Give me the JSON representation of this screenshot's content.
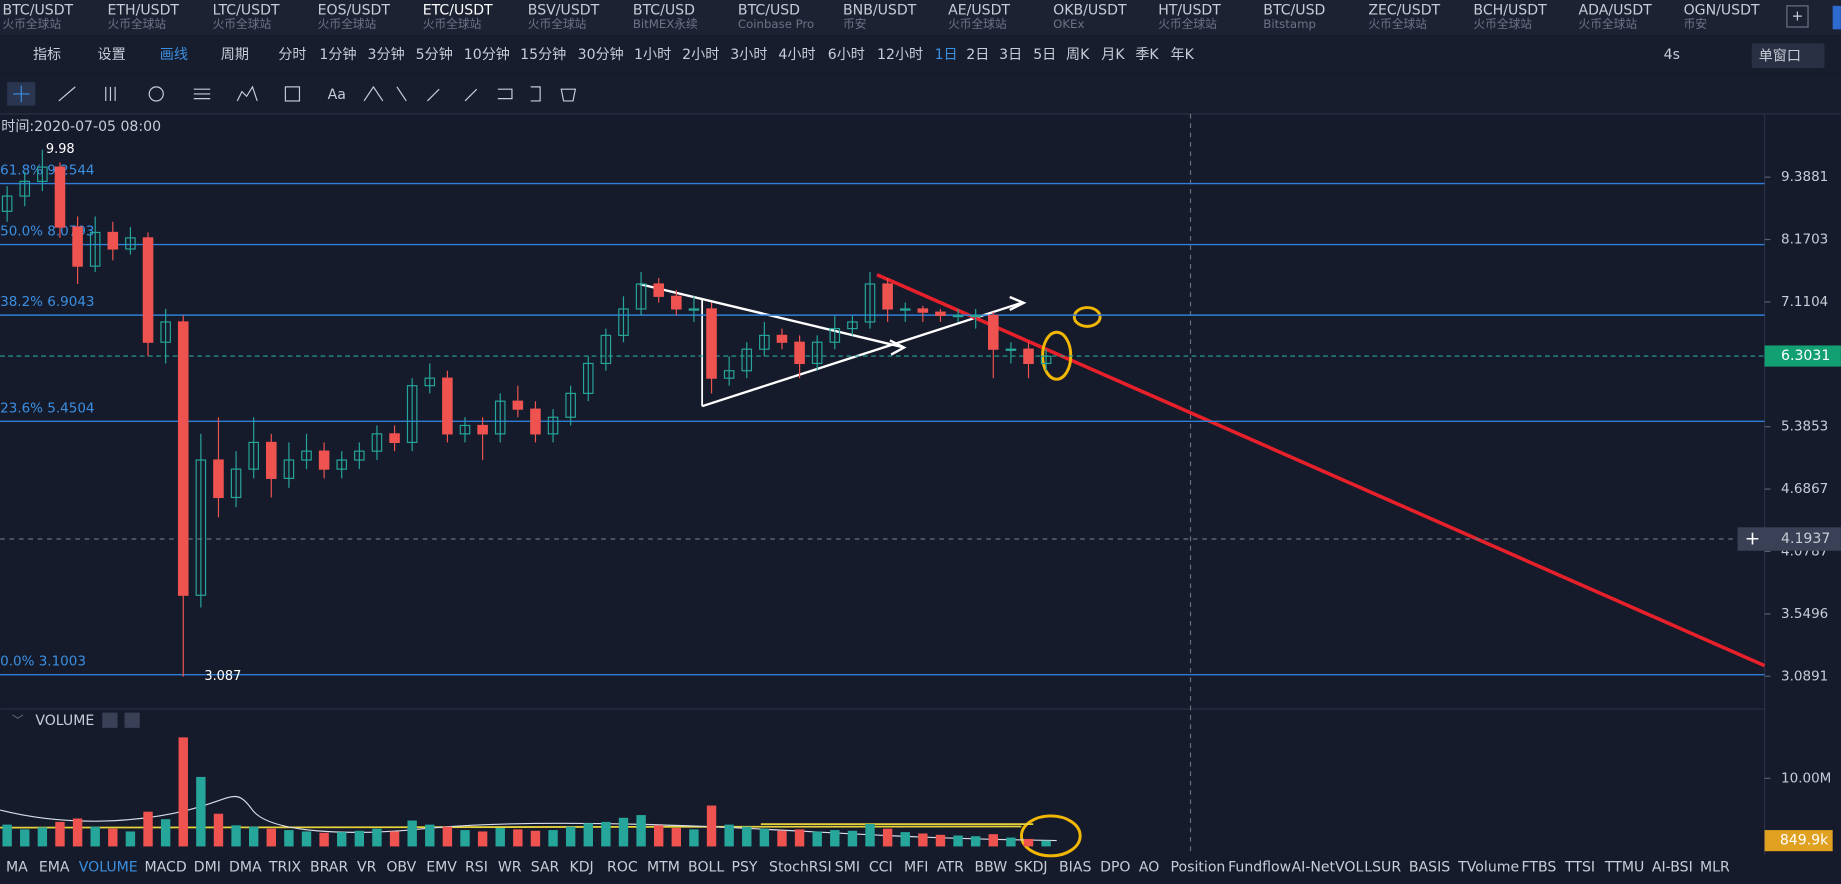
{
  "tabs": [
    {
      "symbol": "BTC/USDT",
      "exchange": "火币全球站"
    },
    {
      "symbol": "ETH/USDT",
      "exchange": "火币全球站"
    },
    {
      "symbol": "LTC/USDT",
      "exchange": "火币全球站"
    },
    {
      "symbol": "EOS/USDT",
      "exchange": "火币全球站"
    },
    {
      "symbol": "ETC/USDT",
      "exchange": "火币全球站"
    },
    {
      "symbol": "BSV/USDT",
      "exchange": "火币全球站"
    },
    {
      "symbol": "BTC/USD",
      "exchange": "BitMEX永续"
    },
    {
      "symbol": "BTC/USD",
      "exchange": "Coinbase Pro"
    },
    {
      "symbol": "BNB/USDT",
      "exchange": "币安"
    },
    {
      "symbol": "AE/USDT",
      "exchange": "火币全球站"
    },
    {
      "symbol": "OKB/USDT",
      "exchange": "OKEx"
    },
    {
      "symbol": "HT/USDT",
      "exchange": "火币全球站"
    },
    {
      "symbol": "BTC/USD",
      "exchange": "Bitstamp"
    },
    {
      "symbol": "ZEC/USDT",
      "exchange": "火币全球站"
    },
    {
      "symbol": "BCH/USDT",
      "exchange": "火币全球站"
    },
    {
      "symbol": "ADA/USDT",
      "exchange": "火币全球站"
    },
    {
      "symbol": "OGN/USDT",
      "exchange": "币安"
    }
  ],
  "toolbar": {
    "indicators": "指标",
    "settings": "设置",
    "draw": "画线",
    "period": "周期",
    "periods": [
      "分时",
      "1分钟",
      "3分钟",
      "5分钟",
      "10分钟",
      "15分钟",
      "30分钟",
      "1小时",
      "2小时",
      "3小时",
      "4小时",
      "6小时",
      "12小时",
      "1日",
      "2日",
      "3日",
      "5日",
      "周K",
      "月K",
      "季K",
      "年K"
    ],
    "refresh": "4s",
    "window": "单窗口"
  },
  "chart_data": {
    "type": "candlestick",
    "time_label": "时间:2020-07-05 08:00",
    "log_scale": true,
    "ylim": [
      2.879,
      10.78
    ],
    "yticks": [
      9.3881,
      8.1703,
      7.1104,
      5.3853,
      4.6867,
      4.0787,
      3.5496,
      3.0891
    ],
    "high_label": "9.98",
    "high": 9.98,
    "low_label": "3.087",
    "low": 3.087,
    "last_price": 6.3031,
    "last_price_label": "6.3031",
    "crosshair_price": 4.1937,
    "crosshair_label": "4.1937",
    "fibs": [
      {
        "label": "61.8% 9.2544",
        "value": 9.2544
      },
      {
        "label": "50.0% 8.0793",
        "value": 8.0793
      },
      {
        "label": "38.2% 6.9043",
        "value": 6.9043
      },
      {
        "label": "23.6% 5.4504",
        "value": 5.4504
      },
      {
        "label": "0.0% 3.1003",
        "value": 3.1003
      }
    ],
    "candles": [
      [
        8.7,
        9.2,
        8.5,
        9.0
      ],
      [
        9.0,
        9.5,
        8.8,
        9.3
      ],
      [
        9.3,
        9.98,
        9.1,
        9.6
      ],
      [
        9.6,
        9.7,
        8.2,
        8.4
      ],
      [
        8.4,
        8.6,
        7.4,
        7.7
      ],
      [
        7.7,
        8.6,
        7.6,
        8.3
      ],
      [
        8.3,
        8.5,
        7.8,
        8.0
      ],
      [
        8.0,
        8.4,
        7.9,
        8.2
      ],
      [
        8.2,
        8.3,
        6.3,
        6.5
      ],
      [
        6.5,
        7.0,
        6.2,
        6.8
      ],
      [
        6.8,
        6.9,
        3.087,
        3.7
      ],
      [
        3.7,
        5.3,
        3.6,
        5.0
      ],
      [
        5.0,
        5.5,
        4.4,
        4.6
      ],
      [
        4.6,
        5.1,
        4.5,
        4.9
      ],
      [
        4.9,
        5.5,
        4.8,
        5.2
      ],
      [
        5.2,
        5.3,
        4.6,
        4.8
      ],
      [
        4.8,
        5.2,
        4.7,
        5.0
      ],
      [
        5.0,
        5.3,
        4.9,
        5.1
      ],
      [
        5.1,
        5.2,
        4.8,
        4.9
      ],
      [
        4.9,
        5.1,
        4.8,
        5.0
      ],
      [
        5.0,
        5.2,
        4.9,
        5.1
      ],
      [
        5.1,
        5.4,
        5.0,
        5.3
      ],
      [
        5.3,
        5.4,
        5.1,
        5.2
      ],
      [
        5.2,
        6.0,
        5.1,
        5.9
      ],
      [
        5.9,
        6.2,
        5.8,
        6.0
      ],
      [
        6.0,
        6.1,
        5.2,
        5.3
      ],
      [
        5.3,
        5.5,
        5.2,
        5.4
      ],
      [
        5.4,
        5.5,
        5.0,
        5.3
      ],
      [
        5.3,
        5.8,
        5.2,
        5.7
      ],
      [
        5.7,
        5.9,
        5.5,
        5.6
      ],
      [
        5.6,
        5.7,
        5.2,
        5.3
      ],
      [
        5.3,
        5.6,
        5.2,
        5.5
      ],
      [
        5.5,
        5.9,
        5.4,
        5.8
      ],
      [
        5.8,
        6.3,
        5.7,
        6.2
      ],
      [
        6.2,
        6.7,
        6.1,
        6.6
      ],
      [
        6.6,
        7.2,
        6.5,
        7.0
      ],
      [
        7.0,
        7.6,
        6.9,
        7.4
      ],
      [
        7.4,
        7.5,
        7.1,
        7.2
      ],
      [
        7.2,
        7.3,
        6.9,
        7.0
      ],
      [
        7.0,
        7.2,
        6.8,
        7.0
      ],
      [
        7.0,
        7.1,
        5.8,
        6.0
      ],
      [
        6.0,
        6.3,
        5.9,
        6.1
      ],
      [
        6.1,
        6.5,
        6.0,
        6.4
      ],
      [
        6.4,
        6.8,
        6.3,
        6.6
      ],
      [
        6.6,
        6.7,
        6.4,
        6.5
      ],
      [
        6.5,
        6.6,
        6.0,
        6.2
      ],
      [
        6.2,
        6.6,
        6.1,
        6.5
      ],
      [
        6.5,
        6.9,
        6.4,
        6.7
      ],
      [
        6.7,
        6.9,
        6.6,
        6.8
      ],
      [
        6.8,
        7.6,
        6.7,
        7.4
      ],
      [
        7.4,
        7.5,
        6.8,
        7.0
      ],
      [
        7.0,
        7.1,
        6.8,
        7.0
      ],
      [
        7.0,
        7.05,
        6.8,
        6.95
      ],
      [
        6.95,
        7.0,
        6.8,
        6.9
      ],
      [
        6.9,
        7.0,
        6.8,
        6.9
      ],
      [
        6.9,
        7.0,
        6.7,
        6.9
      ],
      [
        6.9,
        6.95,
        6.0,
        6.4
      ],
      [
        6.4,
        6.5,
        6.2,
        6.4
      ],
      [
        6.4,
        6.5,
        6.0,
        6.2
      ],
      [
        6.2,
        6.4,
        6.1,
        6.3
      ]
    ],
    "volume_title": "VOLUME",
    "vlim": [
      0,
      17.4
    ],
    "vticks": [
      {
        "value": 10,
        "label": "10.00M"
      }
    ],
    "last_volume_label": "849.9k",
    "volumes": [
      3.2,
      2.5,
      2.8,
      3.6,
      4.1,
      2.9,
      2.6,
      2.2,
      5.1,
      4.0,
      16.0,
      10.2,
      4.8,
      3.1,
      2.9,
      2.6,
      2.4,
      2.2,
      2.0,
      2.1,
      2.3,
      2.6,
      2.2,
      3.8,
      3.2,
      2.9,
      2.4,
      2.2,
      2.7,
      2.5,
      2.3,
      2.4,
      2.9,
      3.4,
      3.6,
      4.2,
      4.6,
      3.1,
      2.7,
      2.5,
      6.0,
      3.2,
      2.9,
      2.6,
      2.3,
      2.5,
      2.2,
      2.4,
      2.3,
      3.3,
      2.6,
      2.1,
      1.9,
      1.7,
      1.6,
      1.5,
      1.8,
      1.3,
      1.1,
      0.8499
    ]
  },
  "indicators": [
    "MA",
    "EMA",
    "VOLUME",
    "MACD",
    "DMI",
    "DMA",
    "TRIX",
    "BRAR",
    "VR",
    "OBV",
    "EMV",
    "RSI",
    "WR",
    "SAR",
    "KDJ",
    "ROC",
    "MTM",
    "BOLL",
    "PSY",
    "StochRSI",
    "SMI",
    "CCI",
    "MFI",
    "ATR",
    "BBW",
    "SKDJ",
    "BIAS",
    "DPO",
    "AO",
    "Position",
    "Fundflow",
    "AI-NetVOL",
    "LSUR",
    "BASIS",
    "TVolume",
    "FTBS",
    "TTSI",
    "TTMU",
    "AI-BSI",
    "MLR"
  ]
}
